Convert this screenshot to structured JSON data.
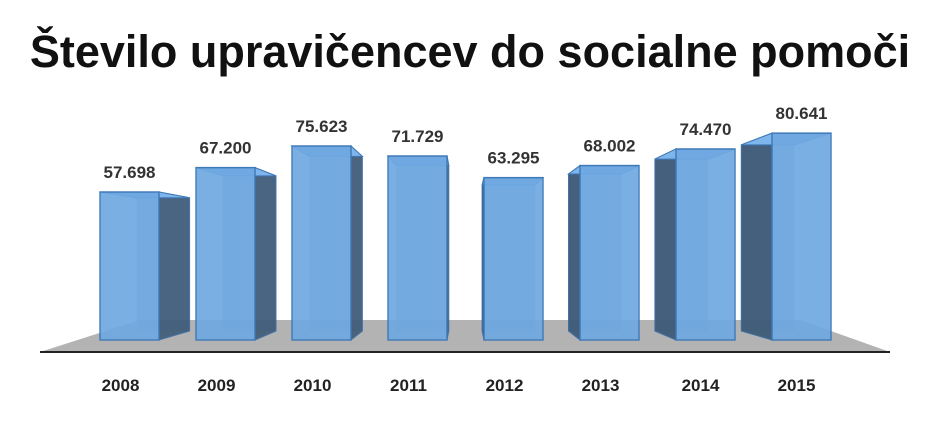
{
  "chart_data": {
    "type": "bar",
    "title": "Število upravičencev do socialne pomoči",
    "categories": [
      "2008",
      "2009",
      "2010",
      "2011",
      "2012",
      "2013",
      "2014",
      "2015"
    ],
    "values": [
      57698,
      67200,
      75623,
      71729,
      63295,
      68002,
      74470,
      80641
    ],
    "data_labels": [
      "57.698",
      "67.200",
      "75.623",
      "71.729",
      "63.295",
      "68.002",
      "74.470",
      "80.641"
    ],
    "xlabel": "",
    "ylabel": "",
    "ylim": [
      0,
      85000
    ],
    "grid": false,
    "legend": "none",
    "style": "3d-column",
    "colors": {
      "bar": "#6fa9e2",
      "bar_side": "#3f5b78",
      "floor": "#b3b3b3",
      "axis": "#222222"
    }
  }
}
